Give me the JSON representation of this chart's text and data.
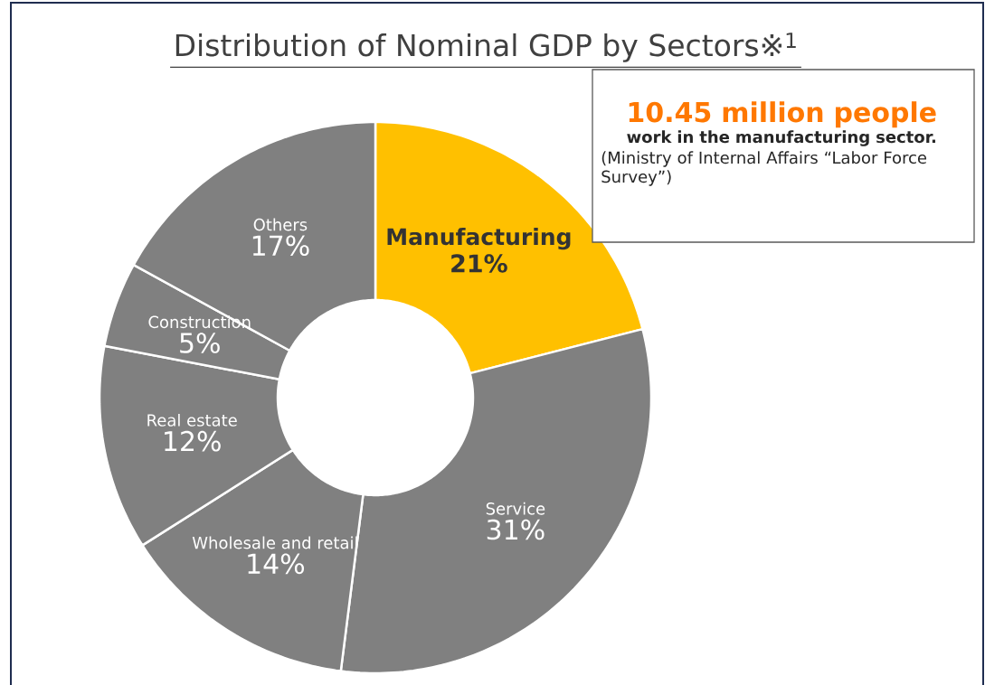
{
  "chart_data": {
    "type": "donut",
    "title": "Distribution of Nominal GDP by Sectors※$^{1}$",
    "categories": [
      "Manufacturing",
      "Service",
      "Wholesale and retail",
      "Real estate",
      "Construction",
      "Others"
    ],
    "values": [
      21,
      31,
      14,
      12,
      5,
      17
    ],
    "value_labels": [
      "21%",
      "31%",
      "14%",
      "12%",
      "5%",
      "17%"
    ],
    "colors": [
      "#ffc000",
      "#808080",
      "#808080",
      "#808080",
      "#808080",
      "#808080"
    ],
    "annotations": [
      "10.45 million people",
      "work in the manufacturing sector.",
      "(Ministry of Internal Affairs “Labor Force Survey”)"
    ]
  }
}
